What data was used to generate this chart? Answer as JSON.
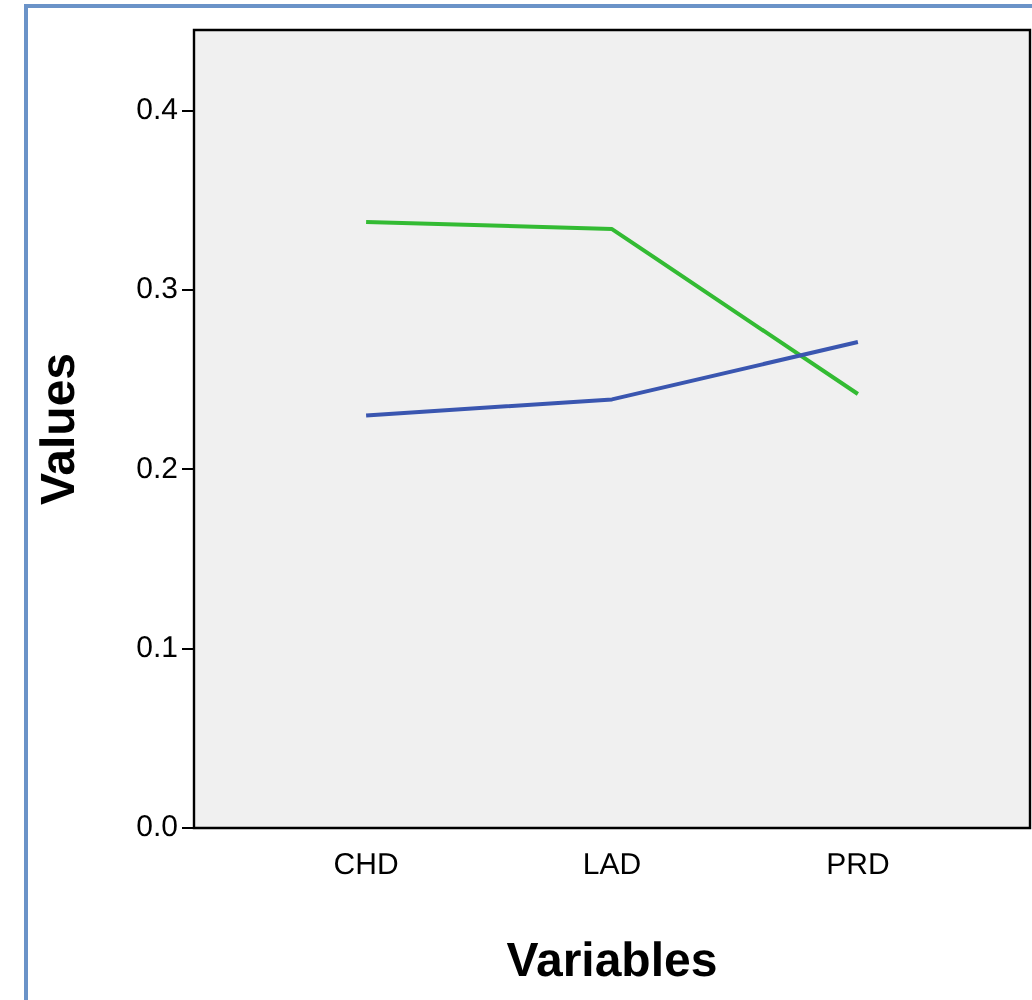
{
  "chart_data": {
    "type": "line",
    "xlabel": "Variables",
    "ylabel": "Values",
    "categories": [
      "CHD",
      "LAD",
      "PRD"
    ],
    "series": [
      {
        "color": "#3a56b0",
        "values": [
          0.23,
          0.239,
          0.271
        ]
      },
      {
        "color": "#33bb33",
        "values": [
          0.338,
          0.334,
          0.242
        ]
      }
    ],
    "ylim": [
      0,
      0.445
    ],
    "yticks": [
      {
        "value": 0,
        "label": "0.0"
      },
      {
        "value": 0.1,
        "label": "0.1"
      },
      {
        "value": 0.2,
        "label": "0.2"
      },
      {
        "value": 0.3,
        "label": "0.3"
      },
      {
        "value": 0.4,
        "label": "0.4"
      }
    ],
    "legend": false,
    "grid": false,
    "marker": "none",
    "line_style": "solid"
  }
}
